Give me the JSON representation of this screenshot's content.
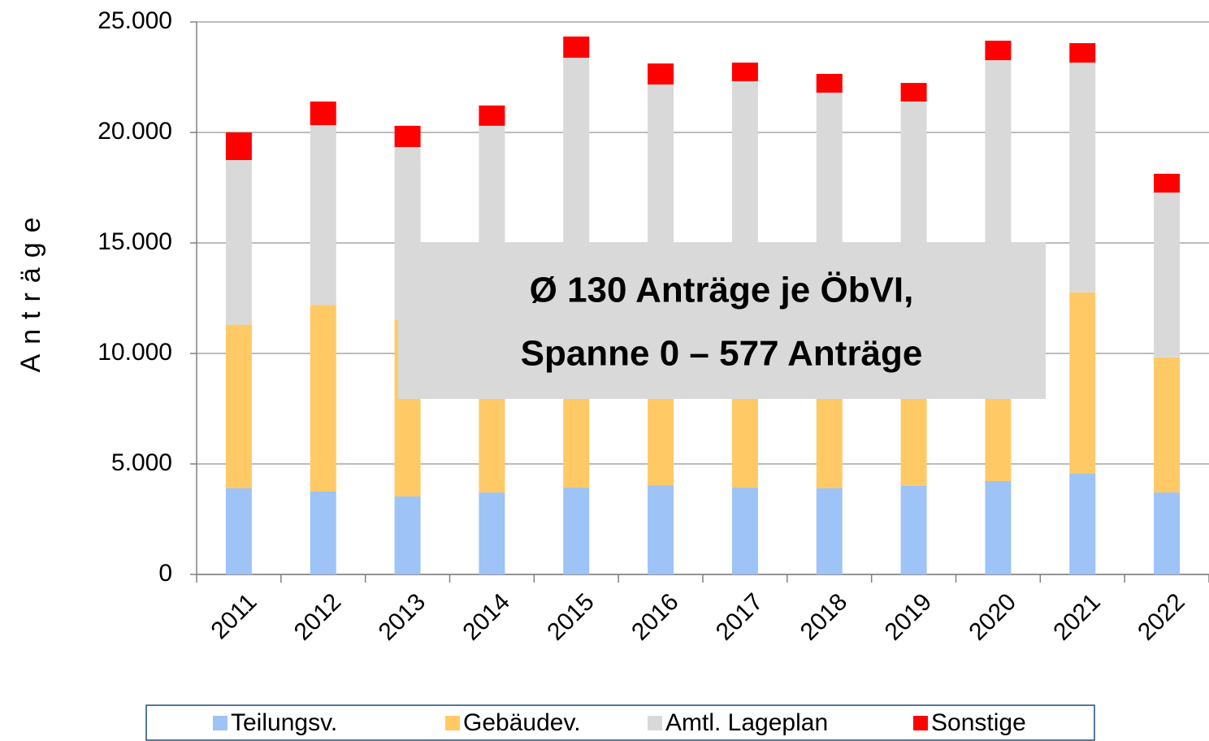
{
  "chart_data": {
    "type": "stacked_bar",
    "ylabel": "Anträge",
    "annotation": [
      "Ø 130 Anträge je ÖbVI,",
      "Spanne 0 – 577 Anträge"
    ],
    "categories": [
      "2011",
      "2012",
      "2013",
      "2014",
      "2015",
      "2016",
      "2017",
      "2018",
      "2019",
      "2020",
      "2021",
      "2022"
    ],
    "series": [
      {
        "name": "Teilungsv.",
        "color": "#9dc3f7",
        "values": [
          3900,
          3750,
          3530,
          3710,
          3930,
          4040,
          3930,
          3900,
          4010,
          4230,
          4560,
          3710
        ]
      },
      {
        "name": "Gebäudev.",
        "color": "#ffca66",
        "values": [
          7400,
          8450,
          8000,
          8200,
          8000,
          7800,
          7900,
          7800,
          7900,
          8000,
          8200,
          6110
        ]
      },
      {
        "name": "Amtl. Lageplan",
        "color": "#d9d9d9",
        "values": [
          7450,
          8130,
          7810,
          8390,
          11450,
          10330,
          10490,
          10100,
          9490,
          11040,
          10400,
          7460
        ]
      },
      {
        "name": "Sonstige",
        "color": "#ff0000",
        "values": [
          1250,
          1070,
          960,
          920,
          960,
          950,
          840,
          850,
          840,
          880,
          880,
          850
        ]
      }
    ],
    "ylim": [
      0,
      25000
    ],
    "yticks": [
      0,
      {
        "value": 5000,
        "label": "5.000"
      },
      {
        "value": 10000,
        "label": "10.000"
      },
      {
        "value": 15000,
        "label": "15.000"
      },
      {
        "value": 20000,
        "label": "20.000"
      },
      {
        "value": 25000,
        "label": "25.000"
      }
    ],
    "grid": true,
    "legend": "bottom"
  }
}
